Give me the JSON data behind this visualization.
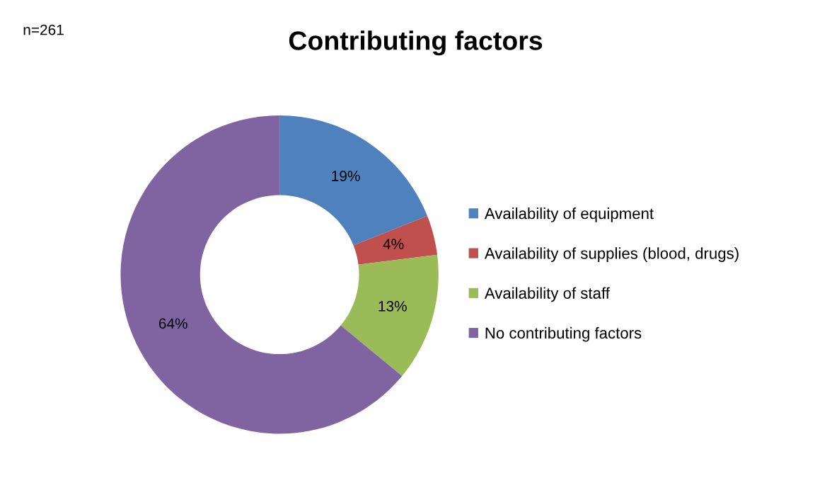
{
  "chart_data": {
    "type": "donut",
    "title": "Contributing factors",
    "annotations": [
      "n=261"
    ],
    "categories": [
      "Availability of equipment",
      "Availability of supplies (blood, drugs)",
      "Availability of staff",
      "No contributing factors"
    ],
    "values": [
      19,
      4,
      13,
      64
    ],
    "colors": [
      "#4f81bd",
      "#c0504d",
      "#9bbb59",
      "#8064a2"
    ],
    "value_labels": [
      "19%",
      "4%",
      "13%",
      "64%"
    ],
    "legend": "right"
  }
}
